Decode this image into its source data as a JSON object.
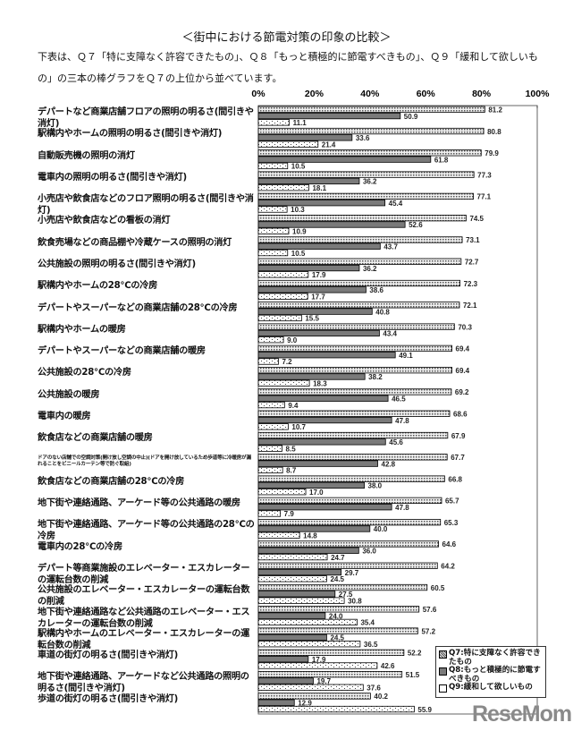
{
  "header": {
    "title": "＜街中における節電対策の印象の比較＞",
    "description": "下表は、Ｑ７「特に支障なく許容できたもの」、Ｑ８「もっと積極的に節電すべきもの」、Ｑ９「緩和して欲しいもの」の三本の棒グラフをＱ７の上位から並べています。"
  },
  "logo": "ReseMom",
  "chart_data": {
    "type": "bar",
    "orientation": "horizontal",
    "xlim": [
      0,
      100
    ],
    "x_ticks": [
      "0%",
      "20%",
      "40%",
      "60%",
      "80%",
      "100%"
    ],
    "grid": false,
    "legend_position": "bottom-right",
    "categories": [
      "デパートなど商業店舗フロアの照明の明るさ(間引きや消灯)",
      "駅構内やホームの照明の明るさ(間引きや消灯)",
      "自動販売機の照明の消灯",
      "電車内の照明の明るさ(間引きや消灯)",
      "小売店や飲食店などのフロア照明の明るさ(間引きや消灯)",
      "小売店や飲食店などの看板の消灯",
      "飲食売場などの商品棚や冷蔵ケースの照明の消灯",
      "公共施設の照明の明るさ(間引きや消灯)",
      "駅構内やホームの28℃の冷房",
      "デパートやスーパーなどの商業店舗の28℃の冷房",
      "駅構内やホームの暖房",
      "デパートやスーパーなどの商業店舗の暖房",
      "公共施設の28℃の冷房",
      "公共施設の暖房",
      "電車内の暖房",
      "飲食店などの商業店舗の暖房",
      "ドアのない店舗での空調対策(開け放し空調の中止)(ドアを開け放しているため歩道等に冷暖房が漏れることをビニールカーテン等で防ぐ取組)",
      "飲食店などの商業店舗の28℃の冷房",
      "地下街や連絡通路、アーケード等の公共通路の暖房",
      "地下街や連絡通路、アーケード等の公共通路の28℃の冷房",
      "電車内の28℃の冷房",
      "デパート等商業施設のエレベーター・エスカレーターの運転台数の削減",
      "公共施設のエレベーター・エスカレーターの運転台数の削減",
      "地下街や連絡通路など公共通路のエレベーター・エスカレーターの運転台数の削減",
      "駅構内やホームのエレベーター・エスカレーターの運転台数の削減",
      "車道の街灯の明るさ(間引きや消灯)",
      "地下街や連絡通路、アーケードなど公共通路の照明の明るさ(間引きや消灯)",
      "歩道の街灯の明るさ(間引きや消灯)"
    ],
    "series": [
      {
        "name": "Q7:特に支障なく許容できたもの",
        "color": "#d8d8d8",
        "values": [
          81.2,
          80.8,
          79.9,
          77.3,
          77.1,
          74.5,
          73.1,
          72.7,
          72.3,
          72.1,
          70.3,
          69.4,
          69.4,
          69.2,
          68.6,
          67.9,
          67.7,
          66.8,
          65.7,
          65.3,
          64.6,
          64.2,
          60.5,
          57.6,
          57.2,
          52.2,
          51.5,
          40.2
        ]
      },
      {
        "name": "Q8:もっと積極的に節電すべきもの",
        "color": "#7a7a7a",
        "values": [
          50.9,
          33.6,
          61.8,
          36.2,
          45.4,
          52.6,
          43.7,
          36.2,
          38.6,
          40.8,
          43.4,
          49.1,
          38.2,
          46.5,
          47.8,
          45.6,
          42.8,
          38.0,
          47.8,
          40.0,
          36.0,
          29.7,
          27.5,
          24.0,
          24.5,
          17.9,
          19.7,
          12.9
        ]
      },
      {
        "name": "Q9:緩和して欲しいもの",
        "color": "#ffffff",
        "values": [
          11.1,
          21.4,
          10.5,
          18.1,
          10.3,
          10.9,
          10.5,
          17.9,
          17.7,
          15.5,
          9.0,
          7.2,
          18.3,
          9.4,
          10.7,
          8.5,
          8.7,
          17.0,
          7.9,
          14.8,
          24.7,
          24.5,
          30.8,
          35.4,
          36.5,
          42.6,
          37.6,
          55.9
        ]
      }
    ]
  }
}
